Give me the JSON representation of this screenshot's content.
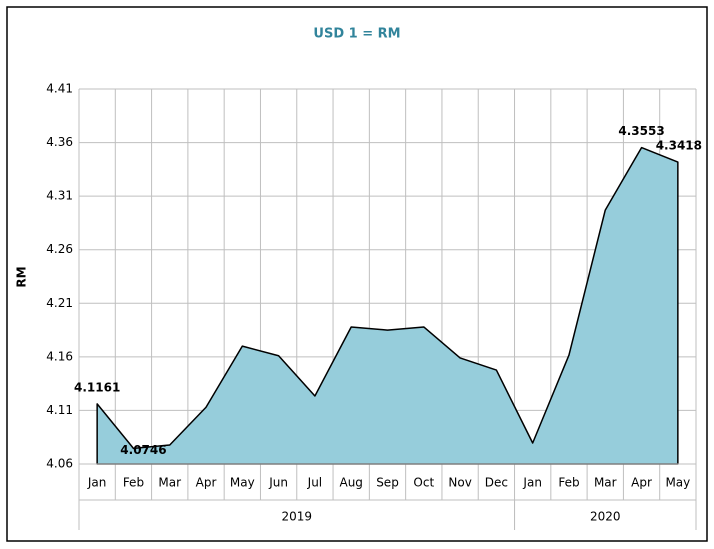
{
  "chart_data": {
    "type": "area",
    "title": "USD 1 = RM",
    "y_label": "RM",
    "categories": [
      "Jan",
      "Feb",
      "Mar",
      "Apr",
      "May",
      "Jun",
      "Jul",
      "Aug",
      "Sep",
      "Oct",
      "Nov",
      "Dec",
      "Jan",
      "Feb",
      "Mar",
      "Apr",
      "May"
    ],
    "groups": [
      {
        "label": "2019",
        "span": 12
      },
      {
        "label": "2020",
        "span": 5
      }
    ],
    "values": [
      4.1161,
      4.0746,
      4.0777,
      4.113,
      4.17,
      4.161,
      4.1235,
      4.1879,
      4.185,
      4.1879,
      4.159,
      4.1477,
      4.0796,
      4.1617,
      4.297,
      4.3553,
      4.3418
    ],
    "value_labels": [
      "4.1161",
      "4.0746",
      null,
      null,
      null,
      null,
      null,
      null,
      null,
      null,
      null,
      null,
      null,
      null,
      null,
      "4.3553",
      "4.3418"
    ],
    "color": "#96cddb",
    "title_color": "#31849b",
    "ylim": [
      4.06,
      4.41
    ],
    "yticks": [
      4.06,
      4.11,
      4.16,
      4.21,
      4.26,
      4.31,
      4.36,
      4.41
    ],
    "grid": true
  }
}
